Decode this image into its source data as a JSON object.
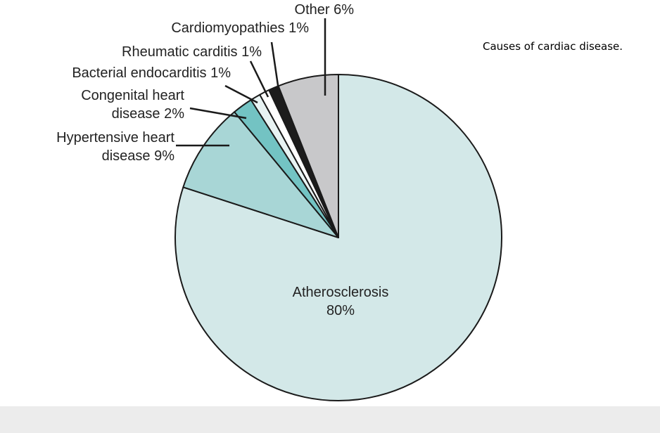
{
  "caption": "Causes of cardiac disease.",
  "chart_data": {
    "type": "pie",
    "title": "",
    "slices": [
      {
        "label_lines": [
          "Atherosclerosis",
          "80%"
        ],
        "value": 80,
        "color": "#d3e8e8"
      },
      {
        "label_lines": [
          "Hypertensive heart",
          "disease 9%"
        ],
        "value": 9,
        "color": "#a8d6d6"
      },
      {
        "label_lines": [
          "Congenital heart",
          "disease 2%"
        ],
        "value": 2,
        "color": "#73c3c3"
      },
      {
        "label_lines": [
          "Bacterial endocarditis 1%"
        ],
        "value": 1,
        "color": "#e8f3f3"
      },
      {
        "label_lines": [
          "Rheumatic carditis 1%"
        ],
        "value": 1,
        "color": "#ffffff"
      },
      {
        "label_lines": [
          "Cardiomyopathies 1%"
        ],
        "value": 1,
        "color": "#1c1c1c"
      },
      {
        "label_lines": [
          "Other 6%"
        ],
        "value": 6,
        "color": "#c8c8ca"
      }
    ]
  }
}
